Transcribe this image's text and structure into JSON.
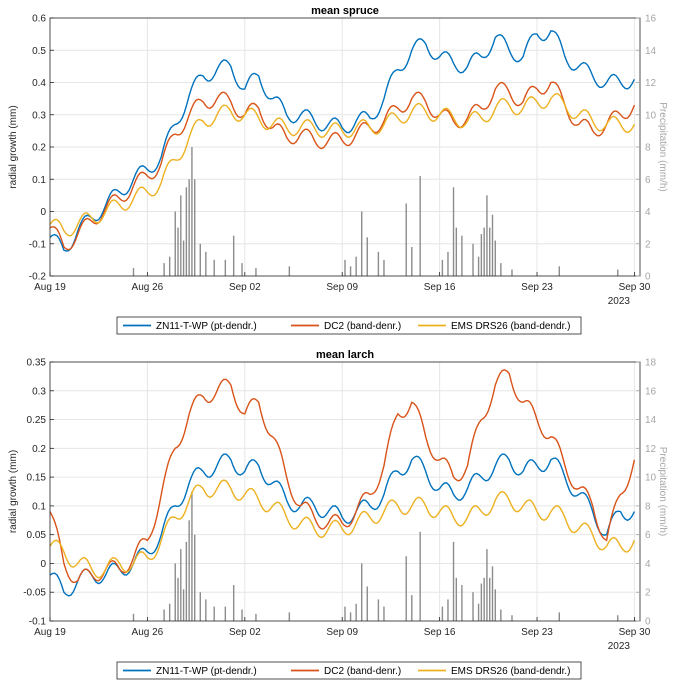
{
  "chart_data": [
    {
      "type": "line",
      "title": "mean spruce",
      "ylabel": "radial growth (mm)",
      "ylabel_right": "Precipitation (mm/h)",
      "x_ticks": [
        "Aug 19",
        "Aug 26",
        "Sep 02",
        "Sep 09",
        "Sep 16",
        "Sep 23",
        "Sep 30"
      ],
      "year_label": "2023",
      "x_range_days": [
        0,
        21.2
      ],
      "ylim": [
        -0.2,
        0.6
      ],
      "y_ticks": [
        "-0.2",
        "-0.1",
        "0",
        "0.1",
        "0.2",
        "0.3",
        "0.4",
        "0.5",
        "0.6"
      ],
      "y2lim": [
        0,
        16
      ],
      "y2_ticks": [
        "0",
        "2",
        "4",
        "6",
        "8",
        "10",
        "12",
        "14",
        "16"
      ],
      "grid": true,
      "legend_position": "bottom-outside",
      "series": [
        {
          "name": "ZN11-T-WP (pt-dendr.)",
          "color": "#0072BD",
          "x": [
            0,
            0.5,
            1,
            1.5,
            2,
            2.5,
            3,
            3.5,
            4,
            4.5,
            5,
            5.5,
            6,
            6.5,
            7,
            7.5,
            8,
            8.5,
            9,
            9.5,
            10,
            10.5,
            11,
            11.5,
            12,
            12.5,
            13,
            13.5,
            14,
            14.5,
            15,
            15.5,
            16,
            16.5,
            17,
            17.5,
            18,
            18.5,
            19,
            19.5,
            20,
            20.5,
            21
          ],
          "y": [
            -0.08,
            -0.12,
            -0.06,
            -0.02,
            0.02,
            0.06,
            0.1,
            0.13,
            0.17,
            0.27,
            0.36,
            0.42,
            0.44,
            0.45,
            0.38,
            0.42,
            0.35,
            0.3,
            0.3,
            0.28,
            0.27,
            0.26,
            0.28,
            0.29,
            0.35,
            0.44,
            0.5,
            0.52,
            0.48,
            0.46,
            0.45,
            0.48,
            0.54,
            0.5,
            0.48,
            0.55,
            0.56,
            0.48,
            0.45,
            0.42,
            0.4,
            0.4,
            0.41
          ]
        },
        {
          "name": "DC2 (band-denr.)",
          "color": "#D95319",
          "x": [
            0,
            0.5,
            1,
            1.5,
            2,
            2.5,
            3,
            3.5,
            4,
            4.5,
            5,
            5.5,
            6,
            6.5,
            7,
            7.5,
            8,
            8.5,
            9,
            9.5,
            10,
            10.5,
            11,
            11.5,
            12,
            12.5,
            13,
            13.5,
            14,
            14.5,
            15,
            15.5,
            16,
            16.5,
            17,
            17.5,
            18,
            18.5,
            19,
            19.5,
            20,
            20.5,
            21
          ],
          "y": [
            -0.05,
            -0.11,
            -0.07,
            -0.03,
            0.01,
            0.04,
            0.08,
            0.11,
            0.15,
            0.24,
            0.3,
            0.34,
            0.35,
            0.34,
            0.3,
            0.32,
            0.26,
            0.23,
            0.24,
            0.22,
            0.22,
            0.22,
            0.24,
            0.26,
            0.28,
            0.32,
            0.35,
            0.34,
            0.3,
            0.28,
            0.29,
            0.32,
            0.38,
            0.37,
            0.34,
            0.38,
            0.4,
            0.33,
            0.27,
            0.25,
            0.27,
            0.3,
            0.33
          ]
        },
        {
          "name": "EMS DRS26 (band-dendr.)",
          "color": "#EDB120",
          "x": [
            0,
            0.5,
            1,
            1.5,
            2,
            2.5,
            3,
            3.5,
            4,
            4.5,
            5,
            5.5,
            6,
            6.5,
            7,
            7.5,
            8,
            8.5,
            9,
            9.5,
            10,
            10.5,
            11,
            11.5,
            12,
            12.5,
            13,
            13.5,
            14,
            14.5,
            15,
            15.5,
            16,
            16.5,
            17,
            17.5,
            18,
            18.5,
            19,
            19.5,
            20,
            20.5,
            21
          ],
          "y": [
            -0.04,
            -0.06,
            -0.04,
            -0.02,
            0.0,
            0.02,
            0.04,
            0.06,
            0.09,
            0.16,
            0.23,
            0.28,
            0.3,
            0.31,
            0.3,
            0.29,
            0.27,
            0.26,
            0.26,
            0.26,
            0.25,
            0.25,
            0.26,
            0.26,
            0.27,
            0.29,
            0.31,
            0.31,
            0.3,
            0.29,
            0.28,
            0.29,
            0.32,
            0.33,
            0.32,
            0.34,
            0.35,
            0.33,
            0.3,
            0.28,
            0.27,
            0.27,
            0.27
          ]
        }
      ],
      "precipitation": {
        "x": [
          3,
          4.1,
          4.3,
          4.5,
          4.6,
          4.7,
          4.8,
          4.9,
          5.0,
          5.1,
          5.2,
          5.4,
          5.6,
          5.9,
          6.3,
          6.6,
          6.9,
          7.4,
          8.6,
          10.6,
          10.8,
          11.0,
          11.2,
          11.4,
          11.8,
          12.0,
          12.8,
          13.0,
          13.3,
          14.1,
          14.3,
          14.5,
          14.6,
          14.8,
          15.2,
          15.4,
          15.5,
          15.6,
          15.7,
          15.8,
          15.9,
          16.0,
          16.2,
          16.6,
          18.3,
          20.4
        ],
        "y": [
          0.5,
          0.8,
          1.2,
          4.0,
          3.0,
          5.0,
          2.2,
          5.5,
          6.0,
          8.0,
          6.0,
          2.0,
          1.5,
          1.0,
          1.0,
          2.5,
          0.8,
          0.5,
          0.6,
          1.0,
          0.6,
          1.2,
          4.0,
          2.4,
          1.5,
          1.0,
          4.5,
          1.8,
          6.2,
          1.0,
          1.5,
          5.5,
          3.0,
          2.5,
          2.0,
          1.2,
          2.6,
          3.0,
          5.0,
          3.0,
          3.8,
          2.2,
          0.8,
          0.4,
          0.6,
          0.4
        ]
      }
    },
    {
      "type": "line",
      "title": "mean larch",
      "ylabel": "radial growth (mm)",
      "ylabel_right": "Precipitation (mm/h)",
      "x_ticks": [
        "Aug 19",
        "Aug 26",
        "Sep 02",
        "Sep 09",
        "Sep 16",
        "Sep 23",
        "Sep 30"
      ],
      "year_label": "2023",
      "x_range_days": [
        0,
        21.2
      ],
      "ylim": [
        -0.1,
        0.35
      ],
      "y_ticks": [
        "-0.1",
        "-0.05",
        "0",
        "0.05",
        "0.1",
        "0.15",
        "0.2",
        "0.25",
        "0.3",
        "0.35"
      ],
      "y2lim": [
        0,
        18
      ],
      "y2_ticks": [
        "0",
        "2",
        "4",
        "6",
        "8",
        "10",
        "12",
        "14",
        "16",
        "18"
      ],
      "grid": true,
      "legend_position": "bottom-outside",
      "series": [
        {
          "name": "ZN11-T-WP (pt-dendr.)",
          "color": "#0072BD",
          "x": [
            0,
            0.5,
            1,
            1.5,
            2,
            2.5,
            3,
            3.5,
            4,
            4.5,
            5,
            5.5,
            6,
            6.5,
            7,
            7.5,
            8,
            8.5,
            9,
            9.5,
            10,
            10.5,
            11,
            11.5,
            12,
            12.5,
            13,
            13.5,
            14,
            14.5,
            15,
            15.5,
            16,
            16.5,
            17,
            17.5,
            18,
            18.5,
            19,
            19.5,
            20,
            20.5,
            21
          ],
          "y": [
            -0.02,
            -0.05,
            -0.03,
            -0.02,
            -0.02,
            -0.01,
            0.0,
            0.02,
            0.05,
            0.1,
            0.14,
            0.16,
            0.17,
            0.18,
            0.16,
            0.17,
            0.14,
            0.11,
            0.1,
            0.1,
            0.09,
            0.08,
            0.09,
            0.1,
            0.12,
            0.16,
            0.18,
            0.16,
            0.13,
            0.12,
            0.13,
            0.15,
            0.17,
            0.18,
            0.16,
            0.17,
            0.18,
            0.15,
            0.12,
            0.09,
            0.05,
            0.09,
            0.09
          ]
        },
        {
          "name": "DC2 (band-denr.)",
          "color": "#D95319",
          "x": [
            0,
            0.5,
            1,
            1.5,
            2,
            2.5,
            3,
            3.5,
            4,
            4.5,
            5,
            5.5,
            6,
            6.5,
            7,
            7.5,
            8,
            8.5,
            9,
            9.5,
            10,
            10.5,
            11,
            11.5,
            12,
            12.5,
            13,
            13.5,
            14,
            14.5,
            15,
            15.5,
            16,
            16.5,
            17,
            17.5,
            18,
            18.5,
            19,
            19.5,
            20,
            20.5,
            21
          ],
          "y": [
            0.09,
            0.0,
            -0.03,
            -0.02,
            -0.01,
            -0.01,
            0.01,
            0.04,
            0.12,
            0.2,
            0.26,
            0.29,
            0.3,
            0.31,
            0.26,
            0.28,
            0.22,
            0.15,
            0.1,
            0.08,
            0.07,
            0.07,
            0.09,
            0.12,
            0.17,
            0.26,
            0.28,
            0.22,
            0.18,
            0.15,
            0.17,
            0.25,
            0.31,
            0.33,
            0.28,
            0.25,
            0.22,
            0.17,
            0.13,
            0.1,
            0.04,
            0.12,
            0.18
          ]
        },
        {
          "name": "EMS DRS26 (band-dendr.)",
          "color": "#EDB120",
          "x": [
            0,
            0.5,
            1,
            1.5,
            2,
            2.5,
            3,
            3.5,
            4,
            4.5,
            5,
            5.5,
            6,
            6.5,
            7,
            7.5,
            8,
            8.5,
            9,
            9.5,
            10,
            10.5,
            11,
            11.5,
            12,
            12.5,
            13,
            13.5,
            14,
            14.5,
            15,
            15.5,
            16,
            16.5,
            17,
            17.5,
            18,
            18.5,
            19,
            19.5,
            20,
            20.5,
            21
          ],
          "y": [
            0.03,
            0.02,
            0.0,
            -0.01,
            -0.01,
            0.0,
            0.0,
            0.01,
            0.04,
            0.08,
            0.11,
            0.13,
            0.13,
            0.13,
            0.12,
            0.11,
            0.1,
            0.08,
            0.07,
            0.06,
            0.06,
            0.06,
            0.07,
            0.08,
            0.09,
            0.1,
            0.1,
            0.1,
            0.09,
            0.08,
            0.08,
            0.09,
            0.11,
            0.11,
            0.1,
            0.09,
            0.09,
            0.08,
            0.06,
            0.05,
            0.03,
            0.03,
            0.04
          ]
        }
      ],
      "precipitation": {
        "x": [
          3,
          4.1,
          4.3,
          4.5,
          4.6,
          4.7,
          4.8,
          4.9,
          5.0,
          5.1,
          5.2,
          5.4,
          5.6,
          5.9,
          6.3,
          6.6,
          6.9,
          7.4,
          8.6,
          10.6,
          10.8,
          11.0,
          11.2,
          11.4,
          11.8,
          12.0,
          12.8,
          13.0,
          13.3,
          14.1,
          14.3,
          14.5,
          14.6,
          14.8,
          15.2,
          15.4,
          15.5,
          15.6,
          15.7,
          15.8,
          15.9,
          16.0,
          16.2,
          16.6,
          18.3,
          20.4
        ],
        "y": [
          0.5,
          0.8,
          1.2,
          4.0,
          3.0,
          5.0,
          2.2,
          5.5,
          7.0,
          9.0,
          6.0,
          2.0,
          1.5,
          1.0,
          1.0,
          2.5,
          0.8,
          0.5,
          0.6,
          1.0,
          0.6,
          1.2,
          4.0,
          2.4,
          1.5,
          1.0,
          4.5,
          1.8,
          6.2,
          1.0,
          1.5,
          5.5,
          3.0,
          2.5,
          2.0,
          1.2,
          2.6,
          3.0,
          5.0,
          3.0,
          3.8,
          2.2,
          0.8,
          0.4,
          0.6,
          0.4
        ]
      }
    }
  ]
}
